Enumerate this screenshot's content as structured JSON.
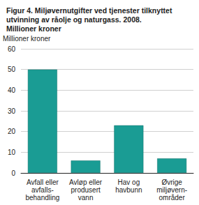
{
  "chart_data": {
    "type": "bar",
    "title": "Figur 4. Miljøvernutgifter ved tjenester tilknyttet\nutvinning av råolje og naturgass. 2008.\nMillioner kroner",
    "y_label": "Millioner kroner",
    "categories": [
      "Avfall eller\navfalls-\nbehandling",
      "Avløp eller\nprodusert\nvann",
      "Hav og\nhavbunn",
      "Øvrige\nmiljøvern-\nområder"
    ],
    "values": [
      50,
      6,
      23,
      7
    ],
    "color": "#1a9c94",
    "ylim": [
      0,
      60
    ],
    "yticks": [
      0,
      10,
      20,
      30,
      40,
      50,
      60
    ],
    "grid": true
  }
}
